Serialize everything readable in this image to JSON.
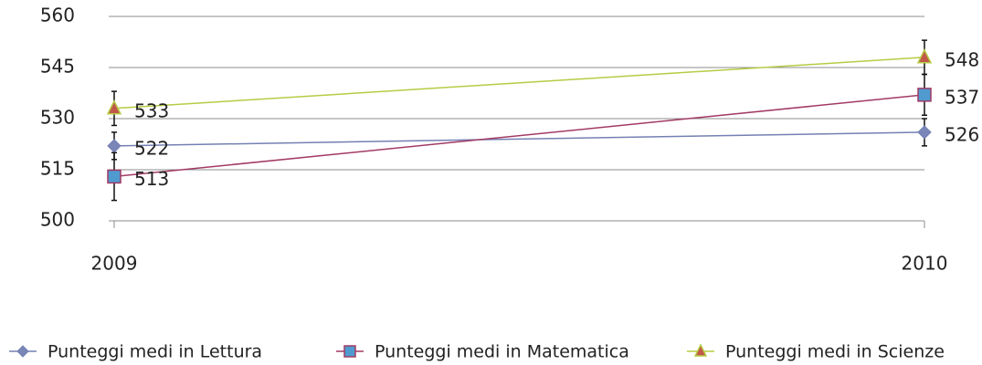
{
  "chart_data": {
    "type": "line",
    "categories": [
      "2009",
      "2010"
    ],
    "ylim": [
      500,
      560
    ],
    "yticks": [
      500,
      515,
      530,
      545,
      560
    ],
    "grid": true,
    "legend": "bottom",
    "series": [
      {
        "name": "Punteggi medi in Lettura",
        "color": "#7480b3",
        "marker": "diamond",
        "marker_color": "#7b86b8",
        "values": [
          522,
          526
        ],
        "errors": [
          4,
          4
        ]
      },
      {
        "name": "Punteggi medi in Matematica",
        "color": "#a23a64",
        "marker": "square",
        "marker_color": "#4f9bd0",
        "values": [
          513,
          537
        ],
        "errors": [
          7,
          6
        ]
      },
      {
        "name": "Punteggi medi in Scienze",
        "color": "#b6cc44",
        "marker": "triangle",
        "marker_color": "#c2584a",
        "values": [
          533,
          548
        ],
        "errors": [
          5,
          5
        ]
      }
    ]
  }
}
